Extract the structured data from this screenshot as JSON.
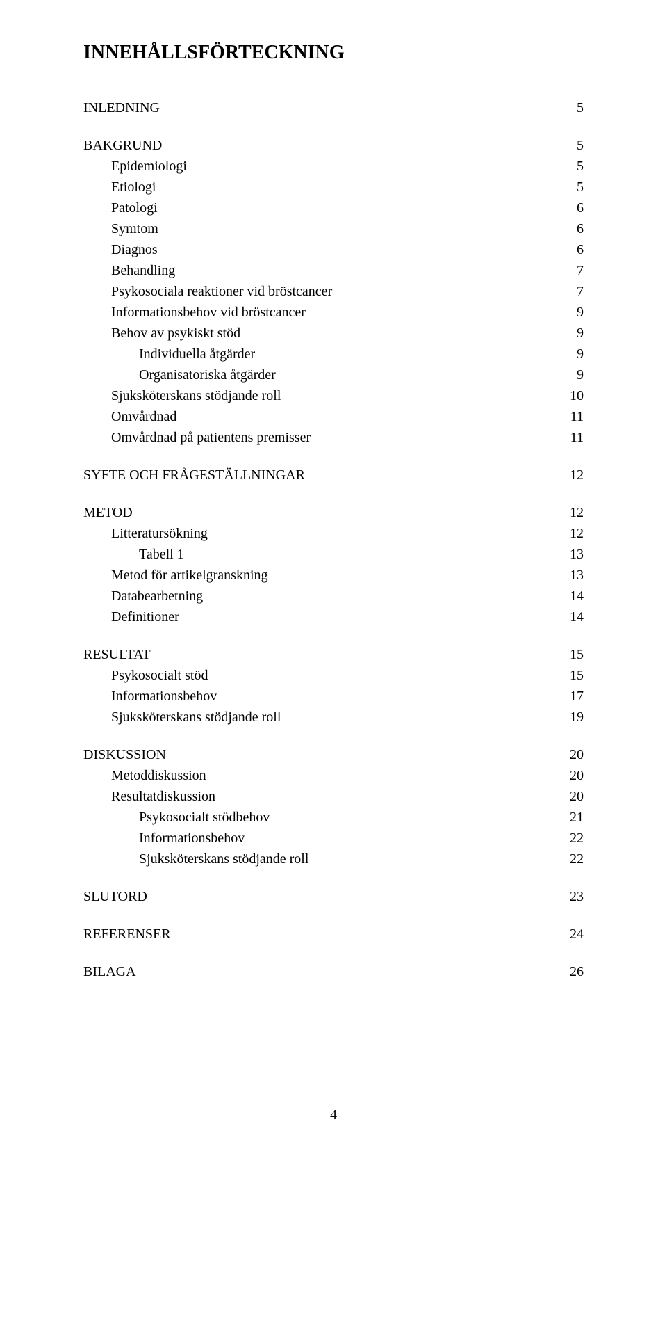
{
  "title": "INNEHÅLLSFÖRTECKNING",
  "page_number": "4",
  "sections": [
    {
      "head": {
        "label": "INLEDNING",
        "page": "5"
      },
      "items": []
    },
    {
      "head": {
        "label": "BAKGRUND",
        "page": "5"
      },
      "items": [
        {
          "label": "Epidemiologi",
          "page": "5",
          "indent": 1
        },
        {
          "label": "Etiologi",
          "page": "5",
          "indent": 1
        },
        {
          "label": "Patologi",
          "page": "6",
          "indent": 1
        },
        {
          "label": "Symtom",
          "page": "6",
          "indent": 1
        },
        {
          "label": "Diagnos",
          "page": "6",
          "indent": 1
        },
        {
          "label": "Behandling",
          "page": "7",
          "indent": 1
        },
        {
          "label": "Psykosociala reaktioner vid bröstcancer",
          "page": "7",
          "indent": 1
        },
        {
          "label": "Informationsbehov vid bröstcancer",
          "page": "9",
          "indent": 1
        },
        {
          "label": "Behov av psykiskt stöd",
          "page": "9",
          "indent": 1
        },
        {
          "label": "Individuella åtgärder",
          "page": "9",
          "indent": 2
        },
        {
          "label": "Organisatoriska åtgärder",
          "page": "9",
          "indent": 2
        },
        {
          "label": "Sjuksköterskans stödjande roll",
          "page": "10",
          "indent": 1
        },
        {
          "label": "Omvårdnad",
          "page": "11",
          "indent": 1
        },
        {
          "label": "Omvårdnad på patientens premisser",
          "page": "11",
          "indent": 1
        }
      ]
    },
    {
      "head": {
        "label": "SYFTE OCH FRÅGESTÄLLNINGAR",
        "page": "12"
      },
      "items": []
    },
    {
      "head": {
        "label": "METOD",
        "page": "12"
      },
      "items": [
        {
          "label": "Litteratursökning",
          "page": "12",
          "indent": 1
        },
        {
          "label": "Tabell 1",
          "page": "13",
          "indent": 2
        },
        {
          "label": "Metod för artikelgranskning",
          "page": "13",
          "indent": 1
        },
        {
          "label": "Databearbetning",
          "page": "14",
          "indent": 1
        },
        {
          "label": "Definitioner",
          "page": "14",
          "indent": 1
        }
      ]
    },
    {
      "head": {
        "label": "RESULTAT",
        "page": "15"
      },
      "items": [
        {
          "label": "Psykosocialt stöd",
          "page": "15",
          "indent": 1
        },
        {
          "label": "Informationsbehov",
          "page": "17",
          "indent": 1
        },
        {
          "label": "Sjuksköterskans stödjande roll",
          "page": "19",
          "indent": 1
        }
      ]
    },
    {
      "head": {
        "label": "DISKUSSION",
        "page": "20"
      },
      "items": [
        {
          "label": "Metoddiskussion",
          "page": "20",
          "indent": 1
        },
        {
          "label": "Resultatdiskussion",
          "page": "20",
          "indent": 1
        },
        {
          "label": "Psykosocialt stödbehov",
          "page": "21",
          "indent": 2
        },
        {
          "label": "Informationsbehov",
          "page": "22",
          "indent": 2
        },
        {
          "label": "Sjuksköterskans stödjande roll",
          "page": "22",
          "indent": 2
        }
      ]
    },
    {
      "head": {
        "label": "SLUTORD",
        "page": "23"
      },
      "items": []
    },
    {
      "head": {
        "label": "REFERENSER",
        "page": "24"
      },
      "items": []
    },
    {
      "head": {
        "label": "BILAGA",
        "page": "26"
      },
      "items": []
    }
  ]
}
